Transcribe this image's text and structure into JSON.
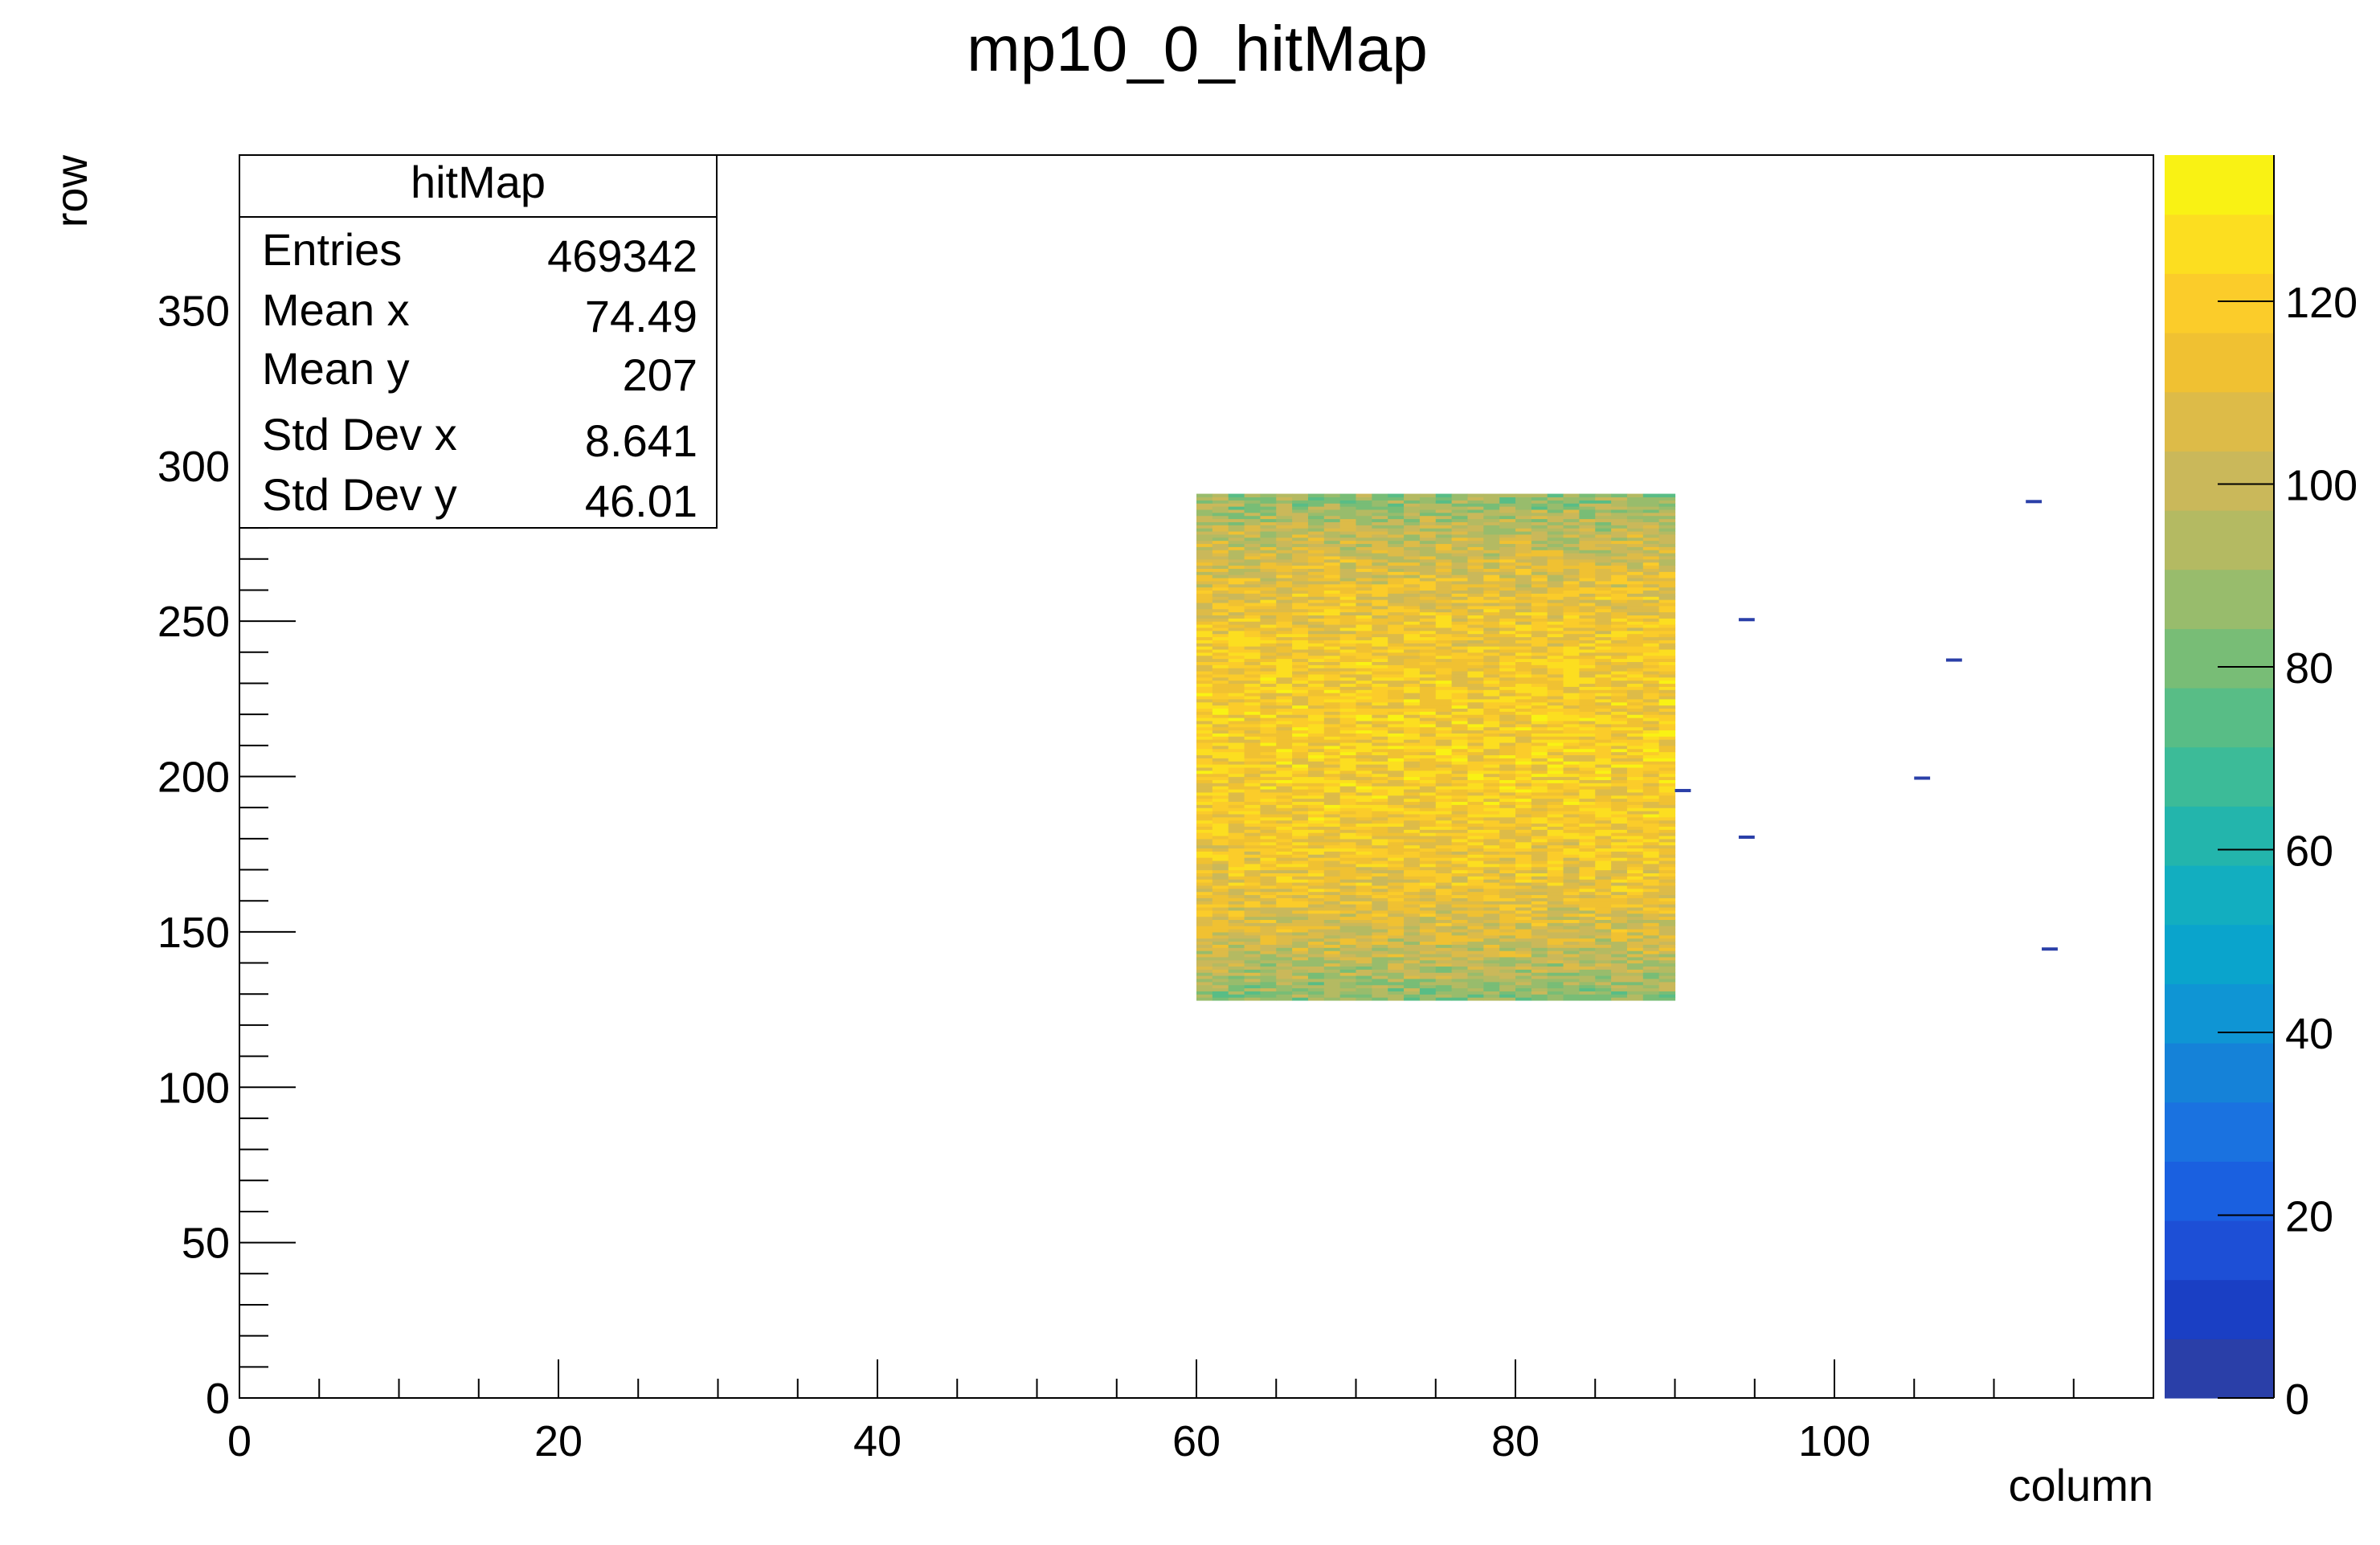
{
  "chart_data": {
    "type": "heatmap",
    "title": "mp10_0_hitMap",
    "xlabel": "column",
    "ylabel": "row",
    "xlim": [
      0,
      120
    ],
    "ylim": [
      0,
      400
    ],
    "x_ticks": [
      "0",
      "20",
      "40",
      "60",
      "80",
      "100"
    ],
    "y_ticks": [
      "0",
      "50",
      "100",
      "150",
      "200",
      "250",
      "300",
      "350"
    ],
    "z_range": [
      0,
      136
    ],
    "z_ticks": [
      "0",
      "20",
      "40",
      "60",
      "80",
      "100",
      "120"
    ],
    "stats_box": {
      "name": "hitMap",
      "rows": [
        {
          "label": "Entries",
          "value": "469342"
        },
        {
          "label": "Mean x",
          "value": "74.49"
        },
        {
          "label": "Mean y",
          "value": "207"
        },
        {
          "label": "Std Dev x",
          "value": "8.641"
        },
        {
          "label": "Std Dev y",
          "value": "46.01"
        }
      ]
    },
    "filled_region": {
      "x": [
        60,
        90
      ],
      "y": [
        128,
        291
      ],
      "typical_value": 110,
      "value_range": [
        70,
        130
      ]
    },
    "outlier_cells": [
      {
        "x": 90,
        "y": 195,
        "value": 1
      },
      {
        "x": 94,
        "y": 250,
        "value": 1
      },
      {
        "x": 94,
        "y": 180,
        "value": 1
      },
      {
        "x": 105,
        "y": 199,
        "value": 1
      },
      {
        "x": 107,
        "y": 237,
        "value": 1
      },
      {
        "x": 112,
        "y": 288,
        "value": 1
      },
      {
        "x": 113,
        "y": 144,
        "value": 1
      }
    ],
    "palette": [
      "#2a3fa8",
      "#1a3fc4",
      "#1d4fd6",
      "#1a60e0",
      "#1a72e0",
      "#1582d8",
      "#0f95d4",
      "#0aa4cc",
      "#12aec0",
      "#23b5ac",
      "#3cbb98",
      "#58bd86",
      "#78bd76",
      "#98bc6c",
      "#b4ba62",
      "#cab85a",
      "#ddbb48",
      "#f0c132",
      "#fbcc2a",
      "#fcde20",
      "#f9f214"
    ]
  }
}
